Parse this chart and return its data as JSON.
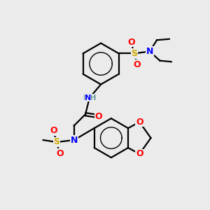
{
  "bg_color": "#ebebeb",
  "atom_colors": {
    "C": "#000000",
    "H": "#6a9a9a",
    "N": "#0000ff",
    "O": "#ff0000",
    "S": "#ccaa00"
  },
  "bond_color": "#000000",
  "bond_width": 1.6,
  "figsize": [
    3.0,
    3.0
  ],
  "dpi": 100,
  "xlim": [
    0,
    10
  ],
  "ylim": [
    0,
    10
  ]
}
